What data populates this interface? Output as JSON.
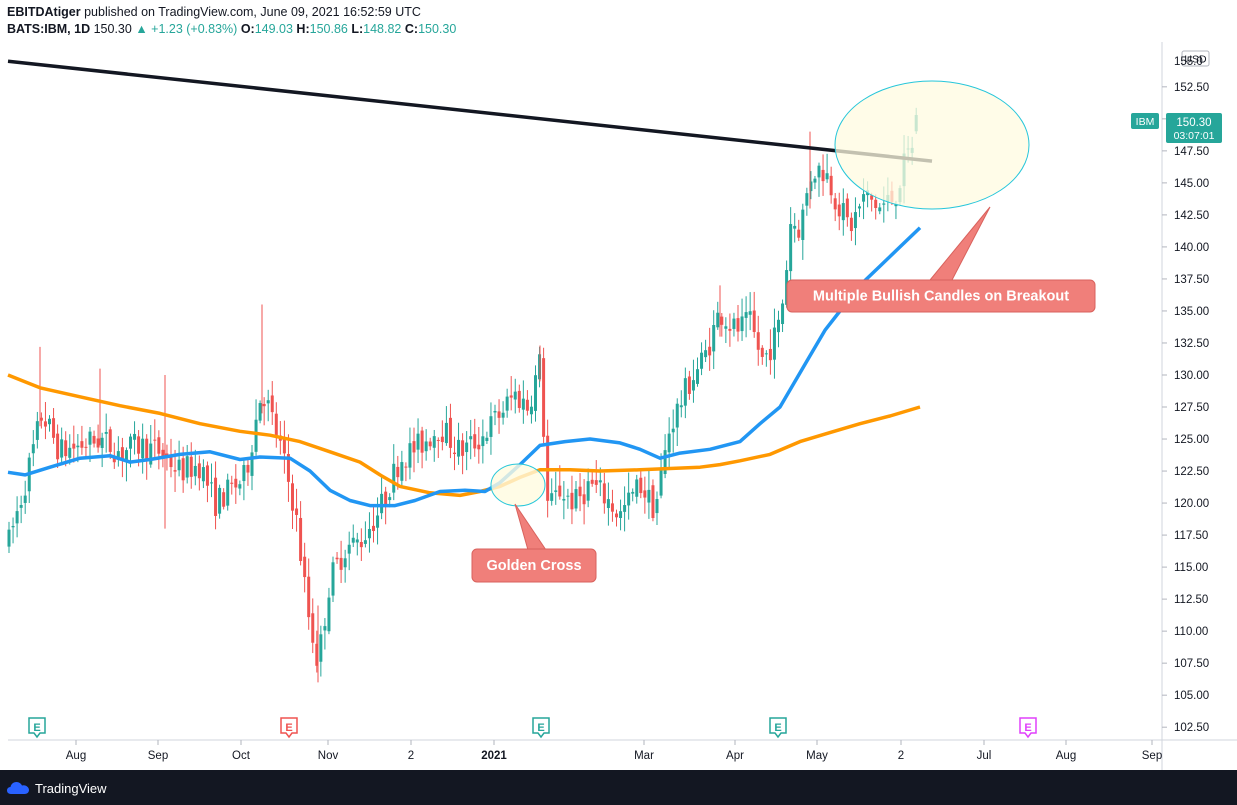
{
  "header": {
    "author": "EBITDAtiger",
    "published_text": "published on TradingView.com, June 09, 2021 16:52:59 UTC",
    "symbol": "BATS:IBM, 1D",
    "last": "150.30",
    "change": "▲ +1.23 (+0.83%)",
    "o_label": "O:",
    "o_value": "149.03",
    "h_label": "H:",
    "h_value": "150.86",
    "l_label": "L:",
    "l_value": "148.82",
    "c_label": "C:",
    "c_value": "150.30"
  },
  "price_axis": {
    "currency": "USD",
    "top_partial_label": "155.0",
    "last_badge_symbol": "IBM",
    "last_badge_price": "150.30",
    "last_badge_timer": "03:07:01"
  },
  "annotations": {
    "breakout_label": "Multiple Bullish Candles on Breakout",
    "golden_cross_label": "Golden Cross"
  },
  "earnings_markers": [
    {
      "label": "E",
      "color": "#26a69a"
    },
    {
      "label": "E",
      "color": "#ef5350"
    },
    {
      "label": "E",
      "color": "#26a69a"
    },
    {
      "label": "E",
      "color": "#26a69a"
    },
    {
      "label": "E",
      "color": "#e040fb"
    }
  ],
  "footer": {
    "brand": "TradingView"
  },
  "colors": {
    "up": "#26a69a",
    "down": "#ef5350",
    "ma_fast": "#2196f3",
    "ma_slow": "#ff9800",
    "trendline": "#131722",
    "label_bg": "#f07f7a",
    "ellipse_fill": "#fffbe0",
    "ellipse_stroke": "#26c6da"
  },
  "chart_data": {
    "type": "candlestick",
    "title": "",
    "ylim": [
      101.5,
      156.0
    ],
    "yticks": [
      102.5,
      105.0,
      107.5,
      110.0,
      112.5,
      115.0,
      117.5,
      120.0,
      122.5,
      125.0,
      127.5,
      130.0,
      132.5,
      135.0,
      137.5,
      140.0,
      142.5,
      145.0,
      147.5,
      150.0,
      152.5
    ],
    "ytick_labels": [
      "102.50",
      "105.00",
      "107.50",
      "110.00",
      "112.50",
      "115.00",
      "117.50",
      "120.00",
      "122.50",
      "125.00",
      "127.50",
      "130.00",
      "132.50",
      "135.00",
      "137.50",
      "140.00",
      "142.50",
      "145.00",
      "147.50",
      "150.00",
      "152.50"
    ],
    "x_labels": [
      "Aug",
      "Sep",
      "Oct",
      "Nov",
      "2",
      "2021",
      "Mar",
      "Apr",
      "May",
      "2",
      "Jul",
      "Aug",
      "Sep"
    ],
    "key_points": [
      {
        "x": "Jun 2020",
        "close": 117.5
      },
      {
        "x": "Nov 2020",
        "low": 106.0
      },
      {
        "x": "Jan 2021",
        "close": 132.0
      },
      {
        "x": "Apr 2021",
        "high": 149.0
      },
      {
        "x": "Jun 08 2021",
        "open": 149.03,
        "high": 150.86,
        "low": 148.82,
        "close": 150.3
      }
    ],
    "series": [
      {
        "name": "",
        "kind": "moving-average-fast",
        "y_start": 122.4,
        "y_end": 141.5
      },
      {
        "name": "",
        "kind": "moving-average-slow",
        "y_start": 130.0,
        "y_end": 127.5
      }
    ],
    "trendline": {
      "y_start": 154.5,
      "y_end": 146.7
    },
    "grid": false,
    "legend": "none"
  }
}
